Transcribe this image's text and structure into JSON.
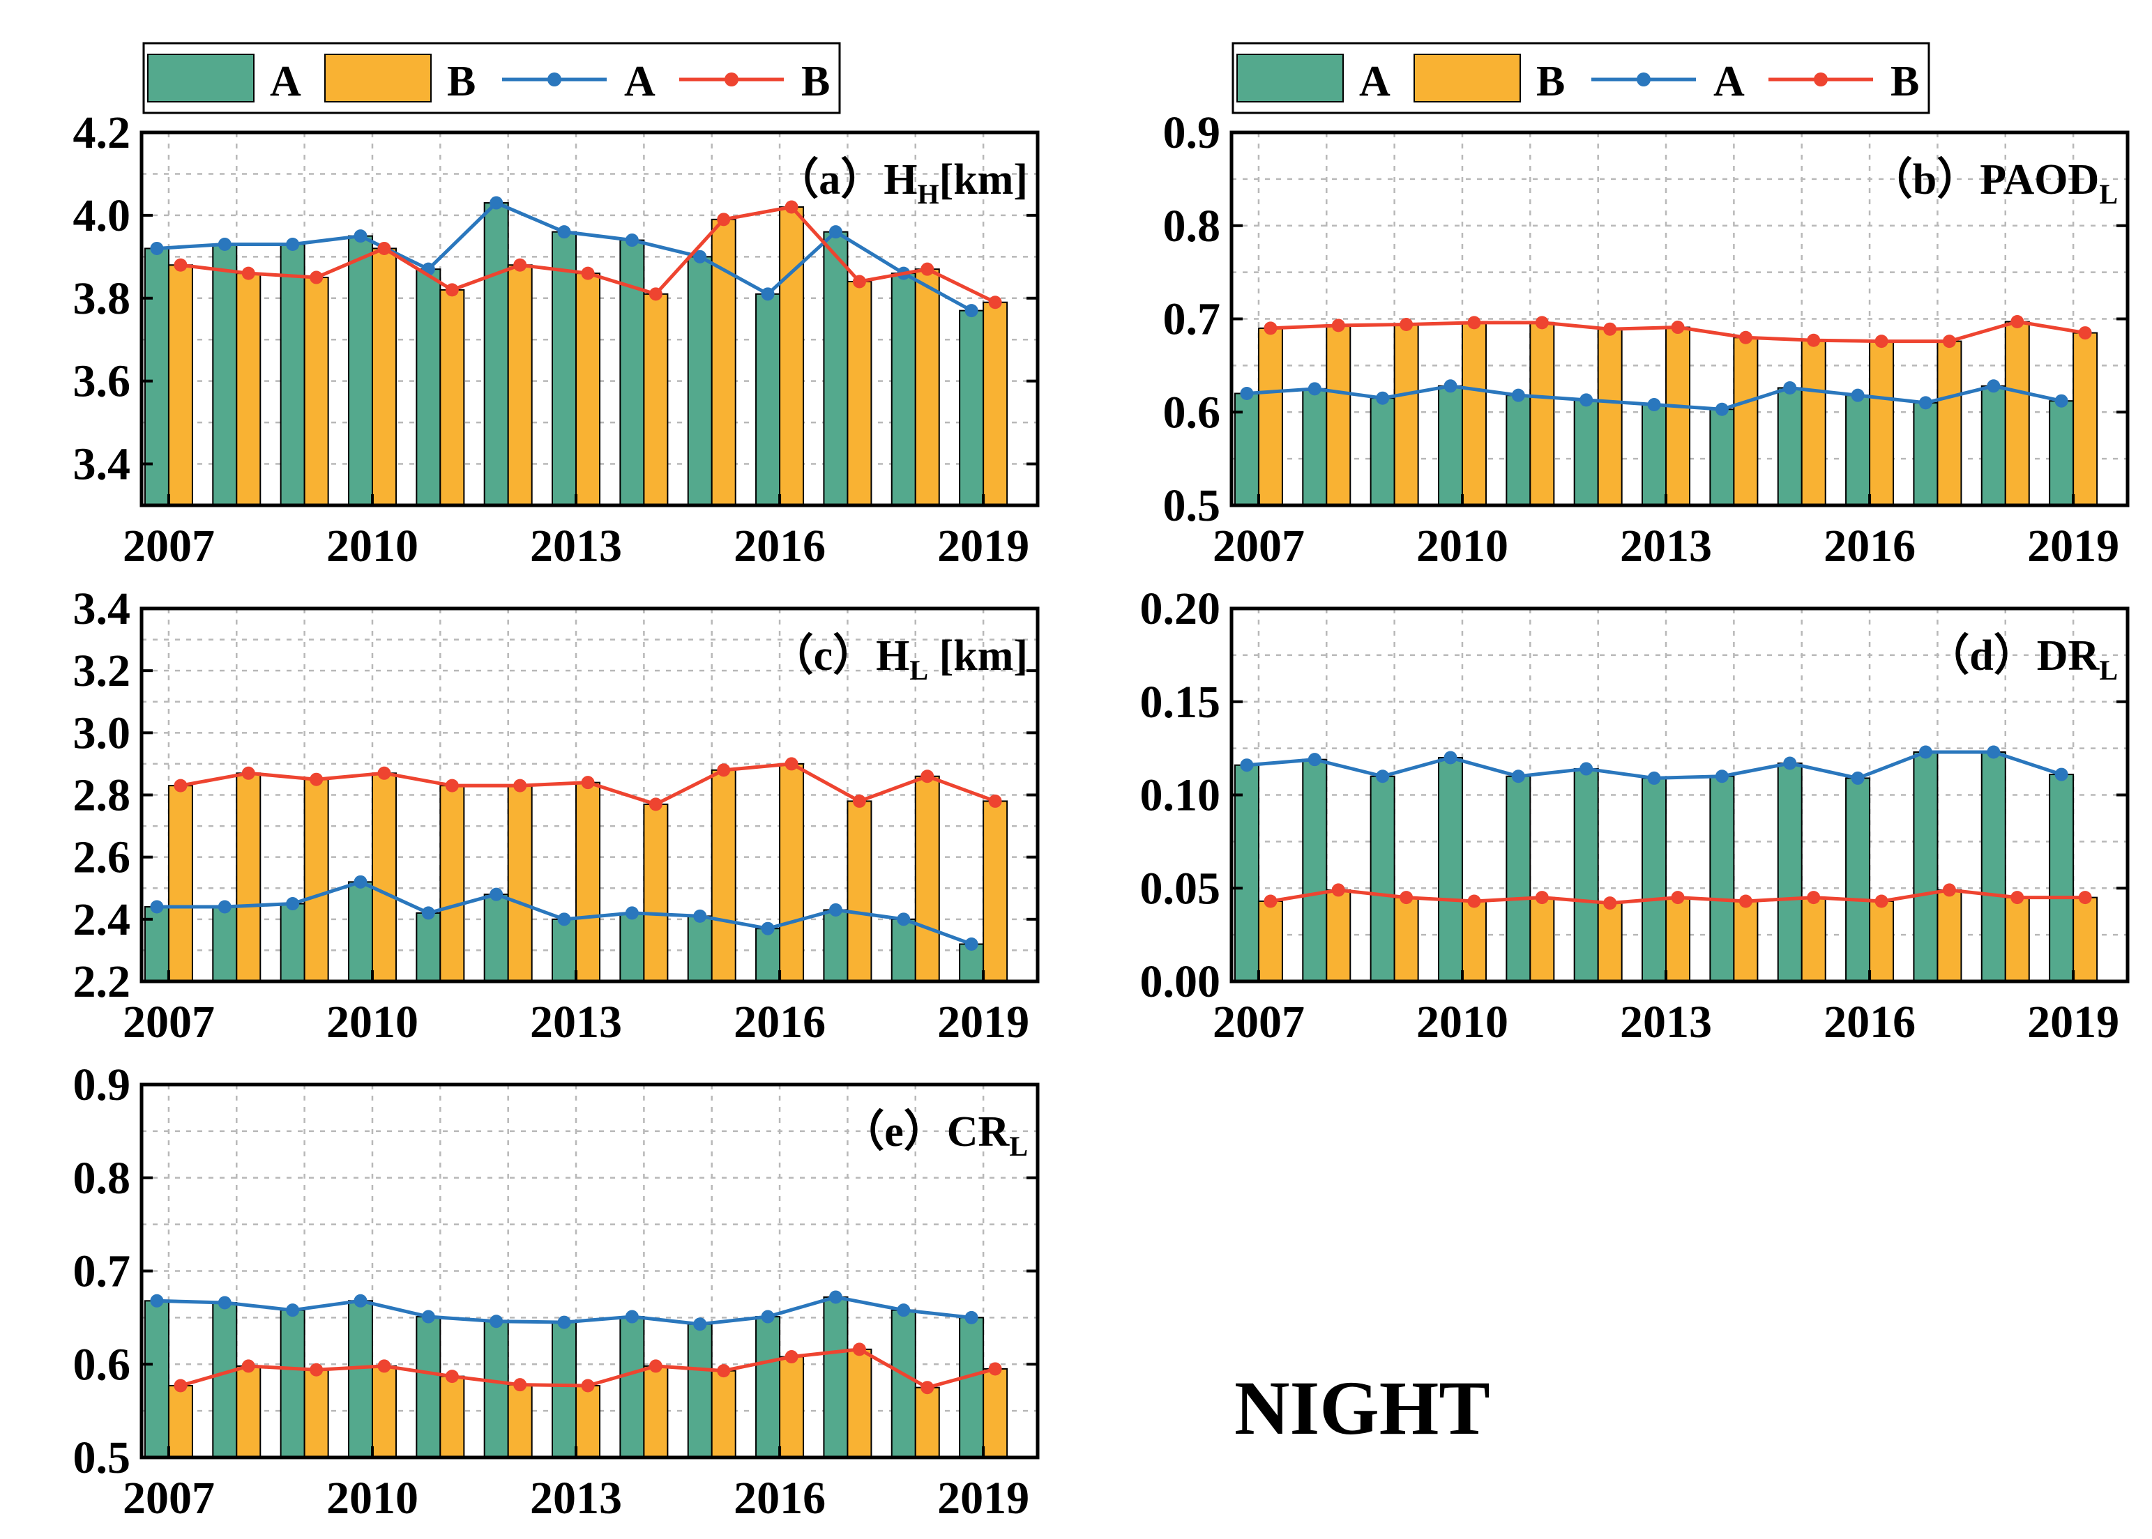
{
  "figure_label": "NIGHT",
  "colors": {
    "bar_A": "#54a98d",
    "bar_B": "#f9b233",
    "line_A": "#2a77bd",
    "line_B": "#ee4430",
    "axis": "#000000",
    "grid": "#b8b8b8"
  },
  "legend": {
    "bar_A": "A",
    "bar_B": "B",
    "line_A": "A",
    "line_B": "B"
  },
  "chart_data": [
    {
      "id": "a",
      "type": "bar+line",
      "title": {
        "prefix": "（a）H",
        "sub": "H",
        "suffix": "[km]"
      },
      "x": [
        2007,
        2008,
        2009,
        2010,
        2011,
        2012,
        2013,
        2014,
        2015,
        2016,
        2017,
        2018,
        2019
      ],
      "xticks": [
        "2007",
        "2010",
        "2013",
        "2016",
        "2019"
      ],
      "ylim": [
        3.3,
        4.2
      ],
      "yticks": [
        "3.4",
        "3.6",
        "3.8",
        "4.0",
        "4.2"
      ],
      "series": [
        {
          "name": "A",
          "kind": "bar",
          "values": [
            3.92,
            3.93,
            3.93,
            3.95,
            3.87,
            4.03,
            3.96,
            3.94,
            3.9,
            3.81,
            3.96,
            3.86,
            3.77
          ]
        },
        {
          "name": "B",
          "kind": "bar",
          "values": [
            3.88,
            3.86,
            3.85,
            3.92,
            3.82,
            3.88,
            3.86,
            3.81,
            3.99,
            4.02,
            3.84,
            3.87,
            3.79
          ]
        },
        {
          "name": "A",
          "kind": "line",
          "values": [
            3.92,
            3.93,
            3.93,
            3.95,
            3.87,
            4.03,
            3.96,
            3.94,
            3.9,
            3.81,
            3.96,
            3.86,
            3.77
          ]
        },
        {
          "name": "B",
          "kind": "line",
          "values": [
            3.88,
            3.86,
            3.85,
            3.92,
            3.82,
            3.88,
            3.86,
            3.81,
            3.99,
            4.02,
            3.84,
            3.87,
            3.79
          ]
        }
      ]
    },
    {
      "id": "b",
      "type": "bar+line",
      "title": {
        "prefix": "（b）PAOD",
        "sub": "L",
        "suffix": ""
      },
      "x": [
        2007,
        2008,
        2009,
        2010,
        2011,
        2012,
        2013,
        2014,
        2015,
        2016,
        2017,
        2018,
        2019
      ],
      "xticks": [
        "2007",
        "2010",
        "2013",
        "2016",
        "2019"
      ],
      "ylim": [
        0.5,
        0.9
      ],
      "yticks": [
        "0.5",
        "0.6",
        "0.7",
        "0.8",
        "0.9"
      ],
      "series": [
        {
          "name": "A",
          "kind": "bar",
          "values": [
            0.62,
            0.625,
            0.615,
            0.628,
            0.618,
            0.613,
            0.608,
            0.603,
            0.626,
            0.618,
            0.61,
            0.628,
            0.612
          ]
        },
        {
          "name": "B",
          "kind": "bar",
          "values": [
            0.69,
            0.693,
            0.694,
            0.696,
            0.696,
            0.689,
            0.691,
            0.68,
            0.677,
            0.676,
            0.676,
            0.697,
            0.685
          ]
        },
        {
          "name": "A",
          "kind": "line",
          "values": [
            0.62,
            0.625,
            0.615,
            0.628,
            0.618,
            0.613,
            0.608,
            0.603,
            0.626,
            0.618,
            0.61,
            0.628,
            0.612
          ]
        },
        {
          "name": "B",
          "kind": "line",
          "values": [
            0.69,
            0.693,
            0.694,
            0.696,
            0.696,
            0.689,
            0.691,
            0.68,
            0.677,
            0.676,
            0.676,
            0.697,
            0.685
          ]
        }
      ]
    },
    {
      "id": "c",
      "type": "bar+line",
      "title": {
        "prefix": "（c）H",
        "sub": "L",
        "suffix": " [km]"
      },
      "x": [
        2007,
        2008,
        2009,
        2010,
        2011,
        2012,
        2013,
        2014,
        2015,
        2016,
        2017,
        2018,
        2019
      ],
      "xticks": [
        "2007",
        "2010",
        "2013",
        "2016",
        "2019"
      ],
      "ylim": [
        2.2,
        3.4
      ],
      "yticks": [
        "2.2",
        "2.4",
        "2.6",
        "2.8",
        "3.0",
        "3.2",
        "3.4"
      ],
      "series": [
        {
          "name": "A",
          "kind": "bar",
          "values": [
            2.44,
            2.44,
            2.45,
            2.52,
            2.42,
            2.48,
            2.4,
            2.42,
            2.41,
            2.37,
            2.43,
            2.4,
            2.32
          ]
        },
        {
          "name": "B",
          "kind": "bar",
          "values": [
            2.83,
            2.87,
            2.85,
            2.87,
            2.83,
            2.83,
            2.84,
            2.77,
            2.88,
            2.9,
            2.78,
            2.86,
            2.78
          ]
        },
        {
          "name": "A",
          "kind": "line",
          "values": [
            2.44,
            2.44,
            2.45,
            2.52,
            2.42,
            2.48,
            2.4,
            2.42,
            2.41,
            2.37,
            2.43,
            2.4,
            2.32
          ]
        },
        {
          "name": "B",
          "kind": "line",
          "values": [
            2.83,
            2.87,
            2.85,
            2.87,
            2.83,
            2.83,
            2.84,
            2.77,
            2.88,
            2.9,
            2.78,
            2.86,
            2.78
          ]
        }
      ]
    },
    {
      "id": "d",
      "type": "bar+line",
      "title": {
        "prefix": "（d）DR",
        "sub": "L",
        "suffix": ""
      },
      "x": [
        2007,
        2008,
        2009,
        2010,
        2011,
        2012,
        2013,
        2014,
        2015,
        2016,
        2017,
        2018,
        2019
      ],
      "xticks": [
        "2007",
        "2010",
        "2013",
        "2016",
        "2019"
      ],
      "ylim": [
        0.0,
        0.2
      ],
      "yticks": [
        "0.00",
        "0.05",
        "0.10",
        "0.15",
        "0.20"
      ],
      "series": [
        {
          "name": "A",
          "kind": "bar",
          "values": [
            0.116,
            0.119,
            0.11,
            0.12,
            0.11,
            0.114,
            0.109,
            0.11,
            0.117,
            0.109,
            0.123,
            0.123,
            0.111
          ]
        },
        {
          "name": "B",
          "kind": "bar",
          "values": [
            0.043,
            0.049,
            0.045,
            0.043,
            0.045,
            0.042,
            0.045,
            0.043,
            0.045,
            0.043,
            0.049,
            0.045,
            0.045
          ]
        },
        {
          "name": "A",
          "kind": "line",
          "values": [
            0.116,
            0.119,
            0.11,
            0.12,
            0.11,
            0.114,
            0.109,
            0.11,
            0.117,
            0.109,
            0.123,
            0.123,
            0.111
          ]
        },
        {
          "name": "B",
          "kind": "line",
          "values": [
            0.043,
            0.049,
            0.045,
            0.043,
            0.045,
            0.042,
            0.045,
            0.043,
            0.045,
            0.043,
            0.049,
            0.045,
            0.045
          ]
        }
      ]
    },
    {
      "id": "e",
      "type": "bar+line",
      "title": {
        "prefix": "（e）CR",
        "sub": "L",
        "suffix": ""
      },
      "x": [
        2007,
        2008,
        2009,
        2010,
        2011,
        2012,
        2013,
        2014,
        2015,
        2016,
        2017,
        2018,
        2019
      ],
      "xticks": [
        "2007",
        "2010",
        "2013",
        "2016",
        "2019"
      ],
      "ylim": [
        0.5,
        0.9
      ],
      "yticks": [
        "0.5",
        "0.6",
        "0.7",
        "0.8",
        "0.9"
      ],
      "series": [
        {
          "name": "A",
          "kind": "bar",
          "values": [
            0.668,
            0.666,
            0.658,
            0.668,
            0.651,
            0.646,
            0.645,
            0.651,
            0.643,
            0.651,
            0.672,
            0.658,
            0.65
          ]
        },
        {
          "name": "B",
          "kind": "bar",
          "values": [
            0.577,
            0.598,
            0.594,
            0.598,
            0.587,
            0.578,
            0.577,
            0.598,
            0.593,
            0.608,
            0.616,
            0.575,
            0.595
          ]
        },
        {
          "name": "A",
          "kind": "line",
          "values": [
            0.668,
            0.666,
            0.658,
            0.668,
            0.651,
            0.646,
            0.645,
            0.651,
            0.643,
            0.651,
            0.672,
            0.658,
            0.65
          ]
        },
        {
          "name": "B",
          "kind": "line",
          "values": [
            0.577,
            0.598,
            0.594,
            0.598,
            0.587,
            0.578,
            0.577,
            0.598,
            0.593,
            0.608,
            0.616,
            0.575,
            0.595
          ]
        }
      ]
    }
  ]
}
